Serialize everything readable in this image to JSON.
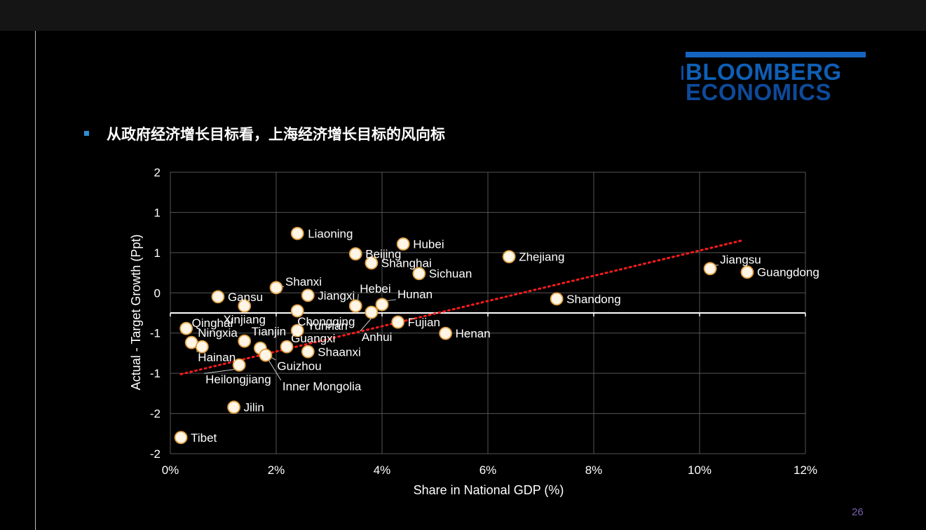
{
  "slide": {
    "heading": "从政府经济增长目标看，上海经济增长目标的风向标",
    "page_number": "26",
    "logo": {
      "line1": "BLOOMBERG",
      "line2": "ECONOMICS"
    }
  },
  "colors": {
    "background": "#000000",
    "logo_blue": "#0f5fb5",
    "marker_fill": "#fff5e6",
    "marker_stroke": "#e0a040",
    "trend": "#ff1a1a"
  },
  "chart_data": {
    "type": "scatter",
    "xlabel": "Share in National GDP (%)",
    "ylabel": "Actual - Target Growth (Ppt)",
    "xlim": [
      0,
      12
    ],
    "ylim": [
      -2,
      2
    ],
    "x_ticks": [
      "0%",
      "2%",
      "4%",
      "6%",
      "8%",
      "10%",
      "12%"
    ],
    "y_ticks": [
      "2",
      "1",
      "1",
      "0",
      "-1",
      "-1",
      "-2",
      "-2"
    ],
    "grid": true,
    "trendline": {
      "style": "dotted",
      "x": [
        0.2,
        10.8
      ],
      "y": [
        -0.87,
        1.03
      ]
    },
    "points": [
      {
        "name": "Liaoning",
        "x": 2.4,
        "y": 1.13
      },
      {
        "name": "Hubei",
        "x": 4.4,
        "y": 0.98
      },
      {
        "name": "Beijing",
        "x": 3.5,
        "y": 0.84
      },
      {
        "name": "Zhejiang",
        "x": 6.4,
        "y": 0.8
      },
      {
        "name": "Shanghai",
        "x": 3.8,
        "y": 0.71
      },
      {
        "name": "Jiangsu",
        "x": 10.2,
        "y": 0.63
      },
      {
        "name": "Guangdong",
        "x": 10.9,
        "y": 0.58
      },
      {
        "name": "Sichuan",
        "x": 4.7,
        "y": 0.56
      },
      {
        "name": "Shanxi",
        "x": 2.0,
        "y": 0.36
      },
      {
        "name": "Gansu",
        "x": 0.9,
        "y": 0.23
      },
      {
        "name": "Jiangxi",
        "x": 2.6,
        "y": 0.25
      },
      {
        "name": "Shandong",
        "x": 7.3,
        "y": 0.2
      },
      {
        "name": "Hebei",
        "x": 3.5,
        "y": 0.1
      },
      {
        "name": "Hunan",
        "x": 4.0,
        "y": 0.12
      },
      {
        "name": "Xinjiang",
        "x": 1.4,
        "y": 0.1
      },
      {
        "name": "Chongqing",
        "x": 2.4,
        "y": 0.03
      },
      {
        "name": "Anhui",
        "x": 3.8,
        "y": 0.01
      },
      {
        "name": "Fujian",
        "x": 4.3,
        "y": -0.13
      },
      {
        "name": "Qinghai",
        "x": 0.3,
        "y": -0.22
      },
      {
        "name": "Yunnan",
        "x": 2.4,
        "y": -0.25
      },
      {
        "name": "Henan",
        "x": 5.2,
        "y": -0.29
      },
      {
        "name": "Ningxia",
        "x": 0.4,
        "y": -0.42
      },
      {
        "name": "Tianjin",
        "x": 1.4,
        "y": -0.4
      },
      {
        "name": "Hainan",
        "x": 0.6,
        "y": -0.48
      },
      {
        "name": "Guangxi",
        "x": 2.2,
        "y": -0.48
      },
      {
        "name": "Shaanxi",
        "x": 2.6,
        "y": -0.55
      },
      {
        "name": "Guizhou",
        "x": 1.7,
        "y": -0.5
      },
      {
        "name": "Inner Mongolia",
        "x": 1.8,
        "y": -0.6
      },
      {
        "name": "Heilongjiang",
        "x": 1.3,
        "y": -0.74
      },
      {
        "name": "Jilin",
        "x": 1.2,
        "y": -1.34
      },
      {
        "name": "Tibet",
        "x": 0.2,
        "y": -1.77
      }
    ]
  }
}
